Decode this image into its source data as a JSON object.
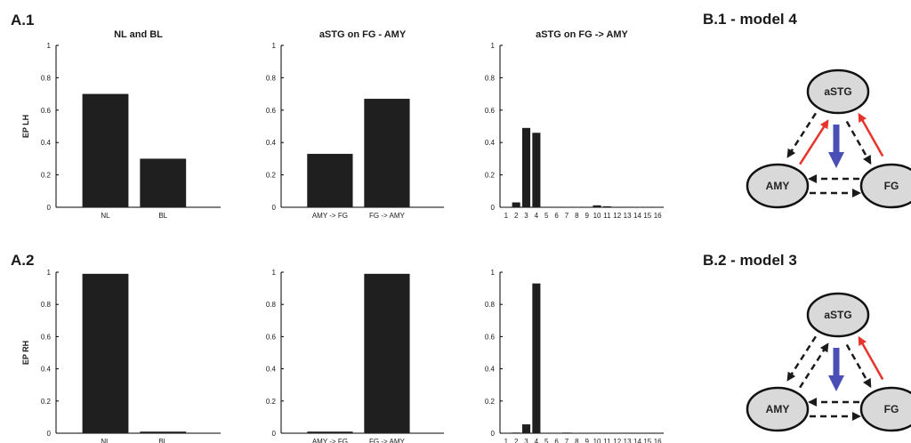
{
  "labels": {
    "a1": "A.1",
    "a2": "A.2",
    "b1": "B.1 - model 4",
    "b2": "B.2 - model 3"
  },
  "colors": {
    "bar": "#1f1f1f",
    "axis": "#000000",
    "node_fill": "#d9d9d9",
    "driving_input": "#4a4fb5",
    "modulated": "#e8332a",
    "dashed": "#1a1a1a"
  },
  "chart_data": [
    {
      "id": "a1-nl-bl",
      "type": "bar",
      "title": "NL and BL",
      "ylabel": "EP LH",
      "categories": [
        "NL",
        "BL"
      ],
      "values": [
        0.7,
        0.3
      ],
      "ylim": [
        0,
        1
      ],
      "yticks": [
        "0",
        "0.2",
        "0.4",
        "0.6",
        "0.8",
        "1"
      ],
      "grid": false
    },
    {
      "id": "a1-family",
      "type": "bar",
      "title": "aSTG on FG - AMY",
      "ylabel": "",
      "categories": [
        "AMY -> FG",
        "FG -> AMY"
      ],
      "values": [
        0.33,
        0.67
      ],
      "ylim": [
        0,
        1
      ],
      "yticks": [
        "0",
        "0.2",
        "0.4",
        "0.6",
        "0.8",
        "1"
      ],
      "grid": false
    },
    {
      "id": "a1-models",
      "type": "bar",
      "title": "aSTG on FG -> AMY",
      "ylabel": "",
      "categories": [
        "1",
        "2",
        "3",
        "4",
        "5",
        "6",
        "7",
        "8",
        "9",
        "10",
        "11",
        "12",
        "13",
        "14",
        "15",
        "16"
      ],
      "values": [
        0.002,
        0.03,
        0.49,
        0.46,
        0.001,
        0.001,
        0.002,
        0.002,
        0.002,
        0.012,
        0.006,
        0.003,
        0.003,
        0.002,
        0.002,
        0.002
      ],
      "ylim": [
        0,
        1
      ],
      "yticks": [
        "0",
        "0.2",
        "0.4",
        "0.6",
        "0.8",
        "1"
      ],
      "grid": false
    },
    {
      "id": "a2-nl-bl",
      "type": "bar",
      "title": "",
      "ylabel": "EP RH",
      "categories": [
        "NL",
        "BL"
      ],
      "values": [
        0.99,
        0.01
      ],
      "ylim": [
        0,
        1
      ],
      "yticks": [
        "0",
        "0.2",
        "0.4",
        "0.6",
        "0.8",
        "1"
      ],
      "grid": false
    },
    {
      "id": "a2-family",
      "type": "bar",
      "title": "",
      "ylabel": "",
      "categories": [
        "AMY -> FG",
        "FG -> AMY"
      ],
      "values": [
        0.01,
        0.99
      ],
      "ylim": [
        0,
        1
      ],
      "yticks": [
        "0",
        "0.2",
        "0.4",
        "0.6",
        "0.8",
        "1"
      ],
      "grid": false
    },
    {
      "id": "a2-models",
      "type": "bar",
      "title": "",
      "ylabel": "",
      "categories": [
        "1",
        "2",
        "3",
        "4",
        "5",
        "6",
        "7",
        "8",
        "9",
        "10",
        "11",
        "12",
        "13",
        "14",
        "15",
        "16"
      ],
      "values": [
        0.001,
        0.004,
        0.055,
        0.93,
        0.001,
        0.001,
        0.004,
        0.002,
        0.001,
        0.001,
        0.001,
        0.001,
        0.001,
        0.001,
        0.003,
        0.001
      ],
      "ylim": [
        0,
        1
      ],
      "yticks": [
        "0",
        "0.2",
        "0.4",
        "0.6",
        "0.8",
        "1"
      ],
      "grid": false
    }
  ],
  "diagrams": [
    {
      "id": "model-4",
      "nodes": {
        "top": "aSTG",
        "left": "AMY",
        "right": "FG"
      },
      "edges": {
        "top_to_left": "dashed",
        "left_to_top": "modulated",
        "top_to_right": "dashed",
        "right_to_top": "modulated",
        "right_to_left": "dashed",
        "left_to_right": "dashed"
      },
      "driving_input": "top"
    },
    {
      "id": "model-3",
      "nodes": {
        "top": "aSTG",
        "left": "AMY",
        "right": "FG"
      },
      "edges": {
        "top_to_left": "dashed",
        "left_to_top": "dashed",
        "top_to_right": "dashed",
        "right_to_top": "modulated",
        "right_to_left": "dashed",
        "left_to_right": "dashed"
      },
      "driving_input": "top"
    }
  ]
}
